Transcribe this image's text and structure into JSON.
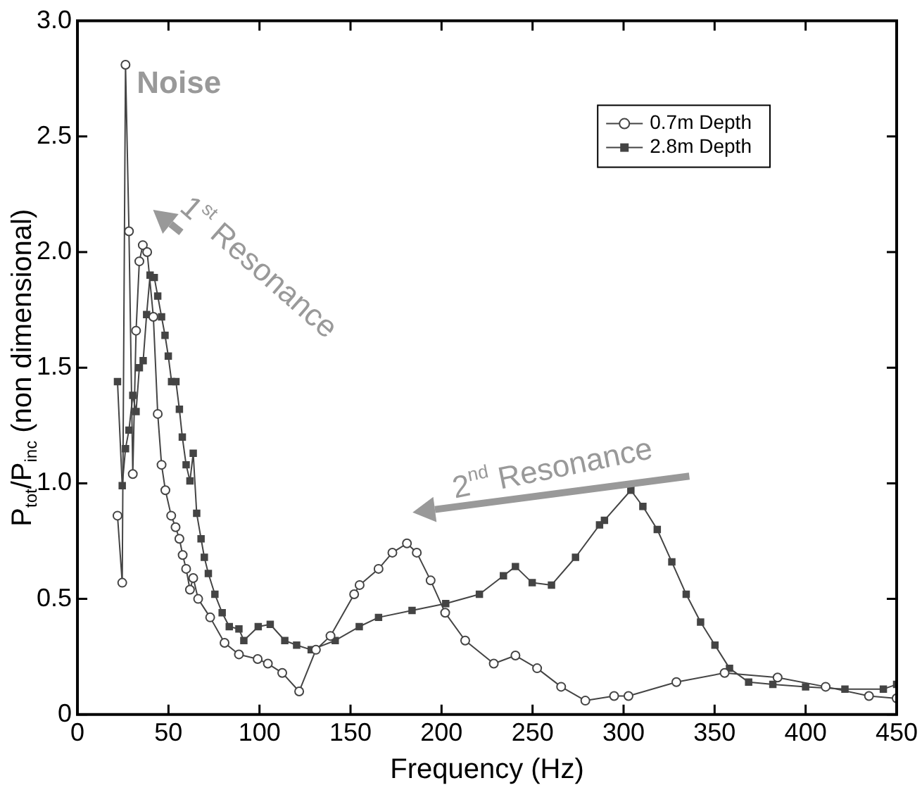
{
  "chart_data": {
    "type": "line",
    "xlabel": "Frequency (Hz)",
    "ylabel": "P$_{tot}$/P$_{inc}$ (non dimensional)",
    "xlim": [
      0,
      450
    ],
    "xticks": [
      0,
      50,
      100,
      150,
      200,
      250,
      300,
      350,
      400,
      450
    ],
    "ylim": [
      0,
      3
    ],
    "yticks": [
      0,
      0.5,
      {
        "value": 1,
        "label": "1.0"
      },
      1.5,
      {
        "value": 2,
        "label": "2.0"
      },
      2.5,
      {
        "value": 3,
        "label": "3.0"
      }
    ],
    "grid": false,
    "legend": "top right",
    "annotations": [
      {
        "text": "Noise",
        "x": 26.4,
        "y": 2.81
      },
      {
        "text": "1$^{st}$ Resonance",
        "x": 40,
        "y": 2.0
      },
      {
        "text": "2$^{nd}$ Resonance",
        "x": 181,
        "y": 0.74
      }
    ],
    "series": [
      {
        "name": "0.7m Depth",
        "color": "#444444",
        "marker": "circle",
        "x": [
          22,
          24.6,
          26.4,
          28.3,
          30.4,
          32.2,
          34,
          35.9,
          38.3,
          41.7,
          44.1,
          46.2,
          48.3,
          51.5,
          53.9,
          56,
          57.8,
          59.7,
          61.8,
          63.6,
          66.3,
          72.9,
          80.8,
          88.7,
          99,
          104.6,
          112.5,
          121.8,
          131,
          139,
          152,
          155,
          165.4,
          173,
          181,
          186.4,
          194,
          202,
          213,
          228.7,
          240.6,
          252.5,
          265.7,
          279,
          294.8,
          302.7,
          329,
          355.5,
          384.6,
          411,
          434.8,
          450
        ],
        "values": [
          0.86,
          0.57,
          2.81,
          2.09,
          1.04,
          1.66,
          1.96,
          2.03,
          2.0,
          1.72,
          1.3,
          1.08,
          0.97,
          0.86,
          0.81,
          0.76,
          0.69,
          0.63,
          0.54,
          0.59,
          0.5,
          0.42,
          0.31,
          0.26,
          0.24,
          0.22,
          0.18,
          0.1,
          0.28,
          0.34,
          0.52,
          0.56,
          0.63,
          0.7,
          0.74,
          0.7,
          0.58,
          0.44,
          0.32,
          0.22,
          0.255,
          0.2,
          0.12,
          0.06,
          0.08,
          0.08,
          0.14,
          0.18,
          0.16,
          0.12,
          0.08,
          0.07
        ]
      },
      {
        "name": "2.8m Depth",
        "color": "#444444",
        "marker": "square",
        "x": [
          22,
          24.6,
          26.4,
          28.3,
          30.4,
          32.2,
          34,
          36.1,
          38,
          39.9,
          42.2,
          44.1,
          46.2,
          48.1,
          49.9,
          51.7,
          54.1,
          56,
          57.6,
          59.7,
          61.8,
          63.6,
          65.5,
          67.9,
          69.7,
          71.9,
          75.5,
          79.5,
          83.4,
          88.7,
          91.4,
          99.3,
          105.9,
          113.9,
          120.4,
          128.4,
          141.6,
          154.8,
          165.4,
          183.8,
          202.3,
          220.8,
          234,
          240.6,
          249.8,
          260.4,
          273.6,
          286.8,
          289.5,
          304,
          310.6,
          318.5,
          326.5,
          334.4,
          342.3,
          350.2,
          358.2,
          368.7,
          382,
          400,
          421.6,
          442.7,
          450
        ],
        "values": [
          1.44,
          0.99,
          1.15,
          1.23,
          1.38,
          1.31,
          1.5,
          1.53,
          1.73,
          1.9,
          1.89,
          1.81,
          1.72,
          1.64,
          1.55,
          1.44,
          1.44,
          1.32,
          1.2,
          1.08,
          1.01,
          1.13,
          0.87,
          0.76,
          0.68,
          0.61,
          0.52,
          0.44,
          0.38,
          0.37,
          0.32,
          0.38,
          0.39,
          0.32,
          0.3,
          0.28,
          0.32,
          0.38,
          0.42,
          0.45,
          0.48,
          0.52,
          0.6,
          0.64,
          0.57,
          0.56,
          0.68,
          0.82,
          0.84,
          0.97,
          0.9,
          0.8,
          0.66,
          0.52,
          0.4,
          0.3,
          0.2,
          0.14,
          0.13,
          0.12,
          0.11,
          0.11,
          0.13
        ]
      }
    ]
  }
}
